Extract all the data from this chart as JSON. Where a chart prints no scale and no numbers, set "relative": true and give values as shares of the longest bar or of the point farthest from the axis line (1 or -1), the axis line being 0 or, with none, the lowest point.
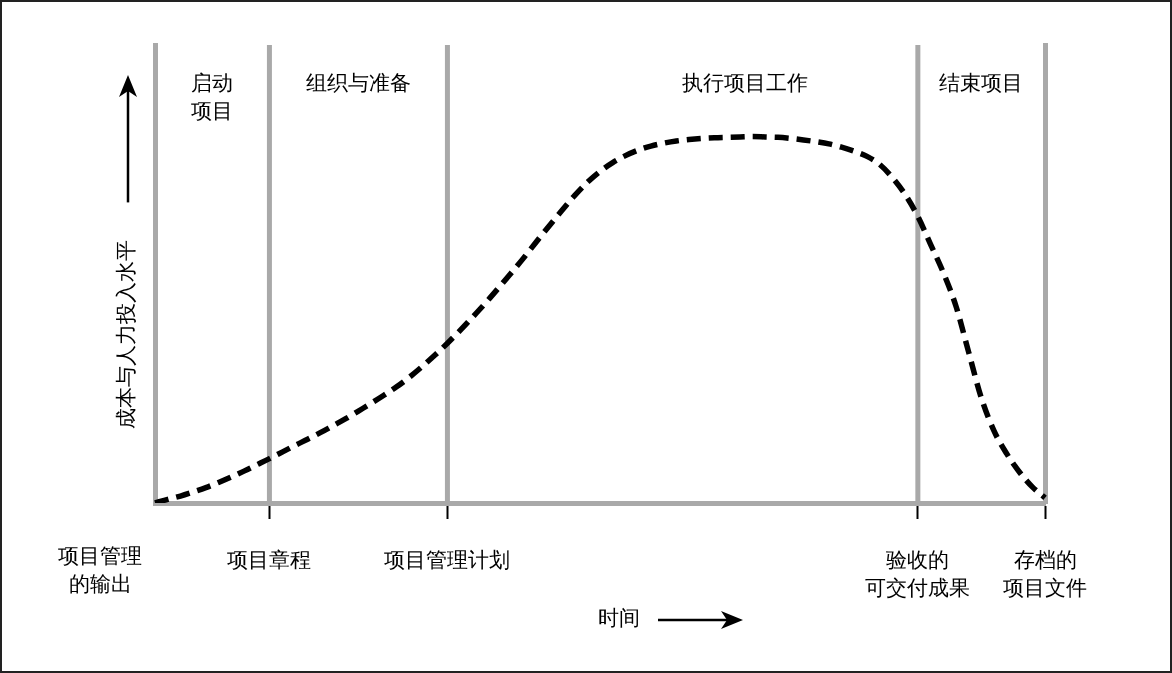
{
  "chart_data": {
    "type": "line",
    "relative": true,
    "xlabel": "时间",
    "ylabel": "成本与人力投入水平",
    "categories": [
      null,
      null,
      null,
      null,
      null,
      null,
      null,
      null,
      null,
      "项目章程",
      null,
      null,
      null,
      null,
      null,
      null,
      null,
      null,
      null,
      null,
      null,
      null,
      null,
      "项目管理计划",
      null,
      null,
      null,
      null,
      null,
      null,
      null,
      null,
      null,
      null,
      null,
      null,
      null,
      null,
      null,
      null,
      null,
      null,
      null,
      null,
      null,
      null,
      null,
      null,
      null,
      null,
      null,
      null,
      null,
      null,
      null,
      null,
      null,
      null,
      null,
      null,
      "验收的可交付成果",
      null,
      null,
      null,
      null,
      null,
      null,
      null,
      null,
      null,
      "存档的项目文件"
    ],
    "values": [
      0,
      0.01,
      0.019,
      0.03,
      0.042,
      0.056,
      0.071,
      0.087,
      0.104,
      0.121,
      0.139,
      0.157,
      0.174,
      0.192,
      0.211,
      0.23,
      0.251,
      0.272,
      0.294,
      0.317,
      0.343,
      0.372,
      0.403,
      0.436,
      0.471,
      0.508,
      0.546,
      0.586,
      0.627,
      0.669,
      0.713,
      0.756,
      0.798,
      0.839,
      0.875,
      0.905,
      0.929,
      0.948,
      0.963,
      0.974,
      0.982,
      0.988,
      0.992,
      0.995,
      0.997,
      0.998,
      0.999,
      1,
      0.999,
      0.998,
      0.995,
      0.991,
      0.986,
      0.98,
      0.971,
      0.96,
      0.946,
      0.924,
      0.888,
      0.842,
      0.782,
      0.706,
      0.629,
      0.537,
      0.411,
      0.286,
      0.196,
      0.134,
      0.084,
      0.044,
      0.014
    ],
    "color": "#000000",
    "line_style": "dashed",
    "marker": "none",
    "tick_labels": "x",
    "ref_lines": [
      {
        "axis": "x",
        "value": "项目章程",
        "label": null,
        "color": "#a9a9a9"
      },
      {
        "axis": "x",
        "value": "项目管理计划",
        "label": null,
        "color": "#a9a9a9"
      },
      {
        "axis": "x",
        "value": "验收的可交付成果",
        "label": null,
        "color": "#a9a9a9"
      }
    ],
    "annotations": [
      "启动项目",
      "组织与准备",
      "执行项目工作",
      "结束项目",
      "项目管理的输出"
    ]
  }
}
